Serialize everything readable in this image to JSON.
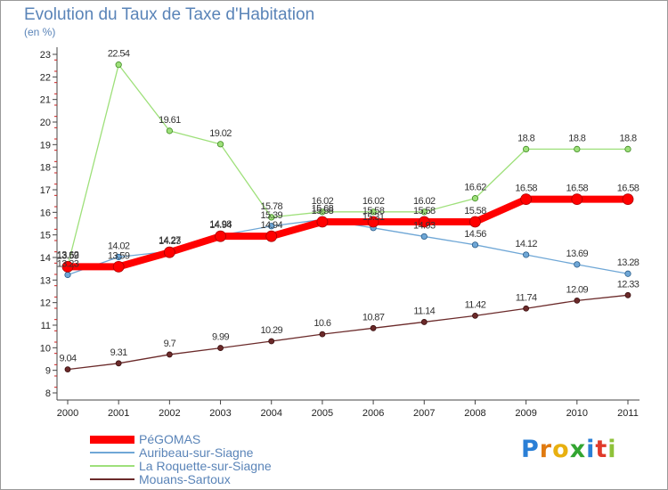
{
  "header": {
    "title": "Evolution du Taux de Taxe d'Habitation",
    "unit": "(en %)"
  },
  "chart_data": {
    "type": "line",
    "title": "Evolution du Taux de Taxe d'Habitation",
    "ylabel": "(en %)",
    "categories": [
      "2000",
      "2001",
      "2002",
      "2003",
      "2004",
      "2005",
      "2006",
      "2007",
      "2008",
      "2009",
      "2010",
      "2011"
    ],
    "yticks": [
      "8",
      "9",
      "10",
      "11",
      "12",
      "13",
      "14",
      "15",
      "16",
      "17",
      "18",
      "19",
      "20",
      "21",
      "22",
      "23"
    ],
    "ylim": [
      8,
      23
    ],
    "grid": false,
    "legend_position": "bottom-left",
    "series": [
      {
        "name": "PéGOMAS",
        "color": "#ff0000",
        "values": [
          13.59,
          13.59,
          14.23,
          14.94,
          14.94,
          15.58,
          15.58,
          15.58,
          15.58,
          16.58,
          16.58,
          16.58
        ],
        "labels": [
          "13.59",
          "13.59",
          "14.23",
          "14.94",
          "14.94",
          "15.58",
          "15.58",
          "15.58",
          "15.58",
          "16.58",
          "16.58",
          "16.58"
        ]
      },
      {
        "name": "Auribeau-sur-Siagne",
        "color": "#6fa7d6",
        "values": [
          13.23,
          14.02,
          14.27,
          14.98,
          15.39,
          15.68,
          15.31,
          14.93,
          14.56,
          14.12,
          13.69,
          13.28
        ],
        "labels": [
          "13.23",
          "14.02",
          "14.27",
          "14.98",
          "15.39",
          "15.68",
          "15.31",
          "14.93",
          "14.56",
          "14.12",
          "13.69",
          "13.28"
        ]
      },
      {
        "name": "La Roquette-sur-Siagne",
        "color": "#9ee07a",
        "values": [
          13.62,
          22.54,
          19.61,
          19.02,
          15.78,
          16.02,
          16.02,
          16.02,
          16.62,
          18.8,
          18.8,
          18.8
        ],
        "labels": [
          "13.62",
          "22.54",
          "19.61",
          "19.02",
          "15.78",
          "16.02",
          "16.02",
          "16.02",
          "16.62",
          "18.8",
          "18.8",
          "18.8"
        ]
      },
      {
        "name": "Mouans-Sartoux",
        "color": "#6b2a2a",
        "values": [
          9.04,
          9.31,
          9.7,
          9.99,
          10.29,
          10.6,
          10.87,
          11.14,
          11.42,
          11.74,
          12.09,
          12.33
        ],
        "labels": [
          "9.04",
          "9.31",
          "9.7",
          "9.99",
          "10.29",
          "10.6",
          "10.87",
          "11.14",
          "11.42",
          "11.74",
          "12.09",
          "12.33"
        ]
      }
    ]
  },
  "logo": {
    "letters": [
      "P",
      "r",
      "o",
      "x",
      "i",
      "t",
      "i"
    ],
    "colors": [
      "#2a7fd6",
      "#e07a10",
      "#e8b010",
      "#33a532",
      "#2a7fd6",
      "#e03a2a",
      "#8fc23a"
    ]
  }
}
